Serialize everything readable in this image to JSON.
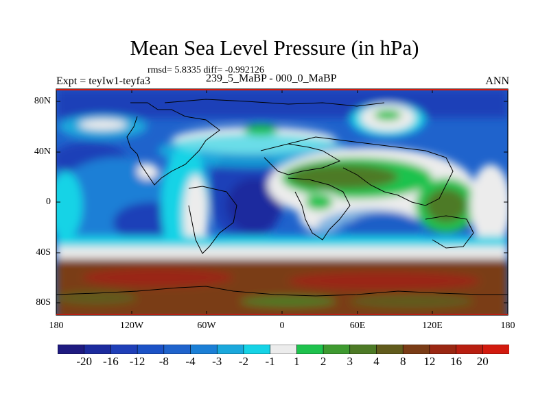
{
  "title": "Mean Sea Level Pressure (in hPa)",
  "stats_line": "rmsd= 5.8335 diff= -0.992126",
  "experiment_label": "Expt = teyIw1-teyfa3",
  "case_label": "239_5_MaBP - 000_0_MaBP",
  "season_label": "ANN",
  "latitude_labels": [
    "80N",
    "40N",
    "0",
    "40S",
    "80S"
  ],
  "longitude_labels": [
    "180",
    "120W",
    "60W",
    "0",
    "60E",
    "120E",
    "180"
  ],
  "colorbar": {
    "labels": [
      "-20",
      "-16",
      "-12",
      "-8",
      "-4",
      "-3",
      "-2",
      "-1",
      "1",
      "2",
      "3",
      "4",
      "8",
      "12",
      "16",
      "20"
    ],
    "colors": [
      "#1e1a80",
      "#1c2b9e",
      "#1f3fb8",
      "#1b52c6",
      "#1f63cc",
      "#1b7fd6",
      "#1aa8dc",
      "#15d3e6",
      "#ececec",
      "#1ec24d",
      "#3e9a30",
      "#4d7a26",
      "#615b1c",
      "#7a3c16",
      "#9a2712",
      "#b81e10",
      "#d21a0e"
    ]
  },
  "colors": {
    "ocean_strong_low": "#1f3fb8",
    "near_zero": "#ececec",
    "land_positive": "#4d7a26",
    "southern_high": "#9a2712"
  }
}
